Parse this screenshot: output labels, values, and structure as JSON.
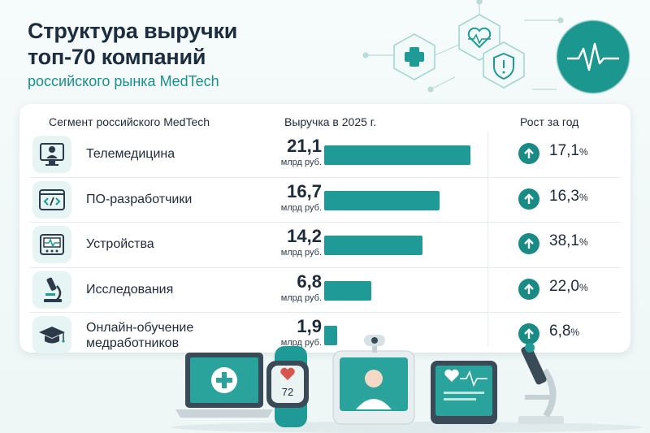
{
  "title_lines": [
    "Структура выручки",
    "топ-70 компаний"
  ],
  "subtitle": "российского рынка MedTech",
  "headers": {
    "segment": "Сегмент российского MedTech",
    "revenue": "Выручка в 2025 г.",
    "growth": "Рост за год"
  },
  "chart_data": {
    "type": "bar",
    "orientation": "horizontal",
    "title": "Структура выручки топ-70 компаний российского рынка MedTech",
    "xlabel": "Выручка в 2025 г.",
    "unit": "млрд руб.",
    "categories": [
      "Телемедицина",
      "ПО-разработчики",
      "Устройства",
      "Исследования",
      "Онлайн-обучение медработников"
    ],
    "values": [
      21.1,
      16.7,
      14.2,
      6.8,
      1.9
    ],
    "value_labels": [
      "21,1",
      "16,7",
      "14,2",
      "6,8",
      "1,9"
    ],
    "growth_labels": [
      "17,1",
      "16,3",
      "38,1",
      "22,0",
      "6,8"
    ],
    "growth_pct": [
      17.1,
      16.3,
      38.1,
      22.0,
      6.8
    ],
    "growth_suffix": "%",
    "xlim": [
      0,
      21.1
    ],
    "bar_color": "#1f9a96",
    "accent_color": "#1a8a84"
  },
  "rows": [
    {
      "label": [
        "Телемедицина"
      ],
      "icon": "doctor-monitor-icon"
    },
    {
      "label": [
        "ПО-разработчики"
      ],
      "icon": "code-window-icon"
    },
    {
      "label": [
        "Устройства"
      ],
      "icon": "medical-device-icon"
    },
    {
      "label": [
        "Исследования"
      ],
      "icon": "microscope-icon"
    },
    {
      "label": [
        "Онлайн-обучение",
        "медработников"
      ],
      "icon": "graduation-cap-icon"
    }
  ],
  "decor": {
    "watch_reading": "72",
    "icons": [
      "plus-hex-icon",
      "heart-pulse-hex-icon",
      "shield-hex-icon",
      "ecg-circle-icon",
      "laptop-icon",
      "smartwatch-icon",
      "telemed-terminal-icon",
      "tablet-ecg-icon",
      "microscope-illustration-icon"
    ]
  }
}
